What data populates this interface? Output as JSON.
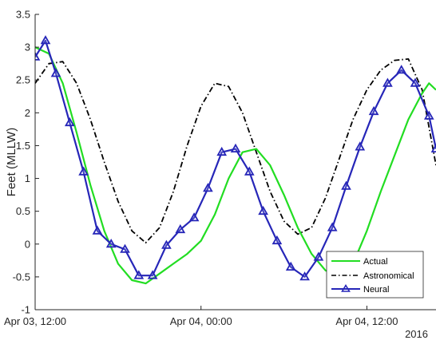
{
  "chart_data": {
    "type": "line",
    "title": "",
    "xlabel": "",
    "ylabel": "Feet (MLLW)",
    "ylim": [
      -1,
      3.5
    ],
    "xlim": [
      "2016-04-03 12:00",
      "2016-04-04 17:00"
    ],
    "y_ticks": [
      "-1",
      "-0.5",
      "0",
      "0.5",
      "1",
      "1.5",
      "2",
      "2.5",
      "3",
      "3.5"
    ],
    "x_ticks": [
      {
        "at": "2016-04-03 12:00",
        "label": "Apr 03, 12:00"
      },
      {
        "at": "2016-04-04 00:00",
        "label": "Apr 04, 00:00"
      },
      {
        "at": "2016-04-04 12:00",
        "label": "Apr 04, 12:00"
      }
    ],
    "x_secondary_label": "2016",
    "grid": false,
    "legend_position": "bottom-right",
    "series": [
      {
        "name": "Actual",
        "color": "#22dd22",
        "style": "solid",
        "marker": "none",
        "points": [
          [
            "2016-04-03 12:00",
            3.0
          ],
          [
            "2016-04-03 13:00",
            2.9
          ],
          [
            "2016-04-03 14:00",
            2.45
          ],
          [
            "2016-04-03 15:00",
            1.7
          ],
          [
            "2016-04-03 16:00",
            0.9
          ],
          [
            "2016-04-03 17:00",
            0.2
          ],
          [
            "2016-04-03 18:00",
            -0.3
          ],
          [
            "2016-04-03 19:00",
            -0.55
          ],
          [
            "2016-04-03 20:00",
            -0.6
          ],
          [
            "2016-04-03 21:00",
            -0.45
          ],
          [
            "2016-04-03 22:00",
            -0.3
          ],
          [
            "2016-04-03 23:00",
            -0.15
          ],
          [
            "2016-04-04 00:00",
            0.05
          ],
          [
            "2016-04-04 01:00",
            0.45
          ],
          [
            "2016-04-04 02:00",
            1.0
          ],
          [
            "2016-04-04 03:00",
            1.4
          ],
          [
            "2016-04-04 04:00",
            1.45
          ],
          [
            "2016-04-04 05:00",
            1.2
          ],
          [
            "2016-04-04 06:00",
            0.75
          ],
          [
            "2016-04-04 07:00",
            0.25
          ],
          [
            "2016-04-04 08:00",
            -0.15
          ],
          [
            "2016-04-04 09:00",
            -0.4
          ],
          [
            "2016-04-04 10:00",
            -0.5
          ],
          [
            "2016-04-04 11:00",
            -0.3
          ],
          [
            "2016-04-04 12:00",
            0.2
          ],
          [
            "2016-04-04 13:00",
            0.8
          ],
          [
            "2016-04-04 14:00",
            1.35
          ],
          [
            "2016-04-04 15:00",
            1.9
          ],
          [
            "2016-04-04 16:00",
            2.3
          ],
          [
            "2016-04-04 16:30",
            2.45
          ],
          [
            "2016-04-04 17:00",
            2.35
          ]
        ]
      },
      {
        "name": "Astronomical",
        "color": "#000000",
        "style": "dash-dot",
        "marker": "none",
        "points": [
          [
            "2016-04-03 12:00",
            2.45
          ],
          [
            "2016-04-03 13:00",
            2.75
          ],
          [
            "2016-04-03 14:00",
            2.78
          ],
          [
            "2016-04-03 15:00",
            2.45
          ],
          [
            "2016-04-03 16:00",
            1.9
          ],
          [
            "2016-04-03 17:00",
            1.25
          ],
          [
            "2016-04-03 18:00",
            0.65
          ],
          [
            "2016-04-03 19:00",
            0.2
          ],
          [
            "2016-04-03 20:00",
            0.02
          ],
          [
            "2016-04-03 21:00",
            0.25
          ],
          [
            "2016-04-03 22:00",
            0.8
          ],
          [
            "2016-04-03 23:00",
            1.5
          ],
          [
            "2016-04-04 00:00",
            2.1
          ],
          [
            "2016-04-04 01:00",
            2.45
          ],
          [
            "2016-04-04 02:00",
            2.4
          ],
          [
            "2016-04-04 03:00",
            2.0
          ],
          [
            "2016-04-04 04:00",
            1.4
          ],
          [
            "2016-04-04 05:00",
            0.8
          ],
          [
            "2016-04-04 06:00",
            0.35
          ],
          [
            "2016-04-04 07:00",
            0.15
          ],
          [
            "2016-04-04 08:00",
            0.25
          ],
          [
            "2016-04-04 09:00",
            0.7
          ],
          [
            "2016-04-04 10:00",
            1.3
          ],
          [
            "2016-04-04 11:00",
            1.9
          ],
          [
            "2016-04-04 12:00",
            2.35
          ],
          [
            "2016-04-04 13:00",
            2.65
          ],
          [
            "2016-04-04 14:00",
            2.8
          ],
          [
            "2016-04-04 15:00",
            2.82
          ],
          [
            "2016-04-04 16:00",
            2.35
          ],
          [
            "2016-04-04 17:00",
            1.2
          ]
        ]
      },
      {
        "name": "Neural",
        "color": "#2626b8",
        "style": "solid",
        "marker": "triangle",
        "points": [
          [
            "2016-04-03 12:00",
            2.85
          ],
          [
            "2016-04-03 12:45",
            3.1
          ],
          [
            "2016-04-03 13:30",
            2.6
          ],
          [
            "2016-04-03 14:30",
            1.85
          ],
          [
            "2016-04-03 15:30",
            1.1
          ],
          [
            "2016-04-03 16:30",
            0.2
          ],
          [
            "2016-04-03 17:30",
            0.0
          ],
          [
            "2016-04-03 18:30",
            -0.08
          ],
          [
            "2016-04-03 19:30",
            -0.48
          ],
          [
            "2016-04-03 20:30",
            -0.48
          ],
          [
            "2016-04-03 21:30",
            -0.02
          ],
          [
            "2016-04-03 22:30",
            0.22
          ],
          [
            "2016-04-03 23:30",
            0.4
          ],
          [
            "2016-04-04 00:30",
            0.85
          ],
          [
            "2016-04-04 01:30",
            1.4
          ],
          [
            "2016-04-04 02:30",
            1.45
          ],
          [
            "2016-04-04 03:30",
            1.1
          ],
          [
            "2016-04-04 04:30",
            0.5
          ],
          [
            "2016-04-04 05:30",
            0.05
          ],
          [
            "2016-04-04 06:30",
            -0.35
          ],
          [
            "2016-04-04 07:30",
            -0.5
          ],
          [
            "2016-04-04 08:30",
            -0.2
          ],
          [
            "2016-04-04 09:30",
            0.25
          ],
          [
            "2016-04-04 10:30",
            0.88
          ],
          [
            "2016-04-04 11:30",
            1.48
          ],
          [
            "2016-04-04 12:30",
            2.02
          ],
          [
            "2016-04-04 13:30",
            2.45
          ],
          [
            "2016-04-04 14:30",
            2.65
          ],
          [
            "2016-04-04 15:30",
            2.45
          ],
          [
            "2016-04-04 16:30",
            1.95
          ],
          [
            "2016-04-04 17:00",
            1.45
          ]
        ]
      }
    ]
  }
}
